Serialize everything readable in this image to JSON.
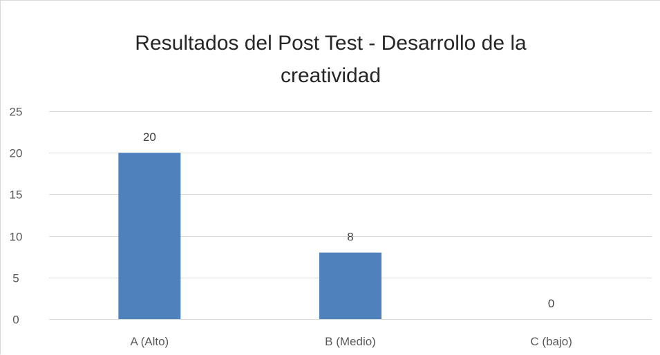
{
  "chart_data": {
    "type": "bar",
    "title_lines": [
      "Resultados del Post Test - Desarrollo de la",
      "creatividad"
    ],
    "categories": [
      "A (Alto)",
      "B (Medio)",
      "C (bajo)"
    ],
    "values": [
      20,
      8,
      0
    ],
    "data_labels": [
      "20",
      "8",
      "0"
    ],
    "ylim": [
      0,
      25
    ],
    "yticks": [
      "0",
      "5",
      "10",
      "15",
      "20",
      "25"
    ],
    "grid": true,
    "legend": "none",
    "xlabel": "",
    "ylabel": "",
    "bar_color": "#4f81bd"
  }
}
